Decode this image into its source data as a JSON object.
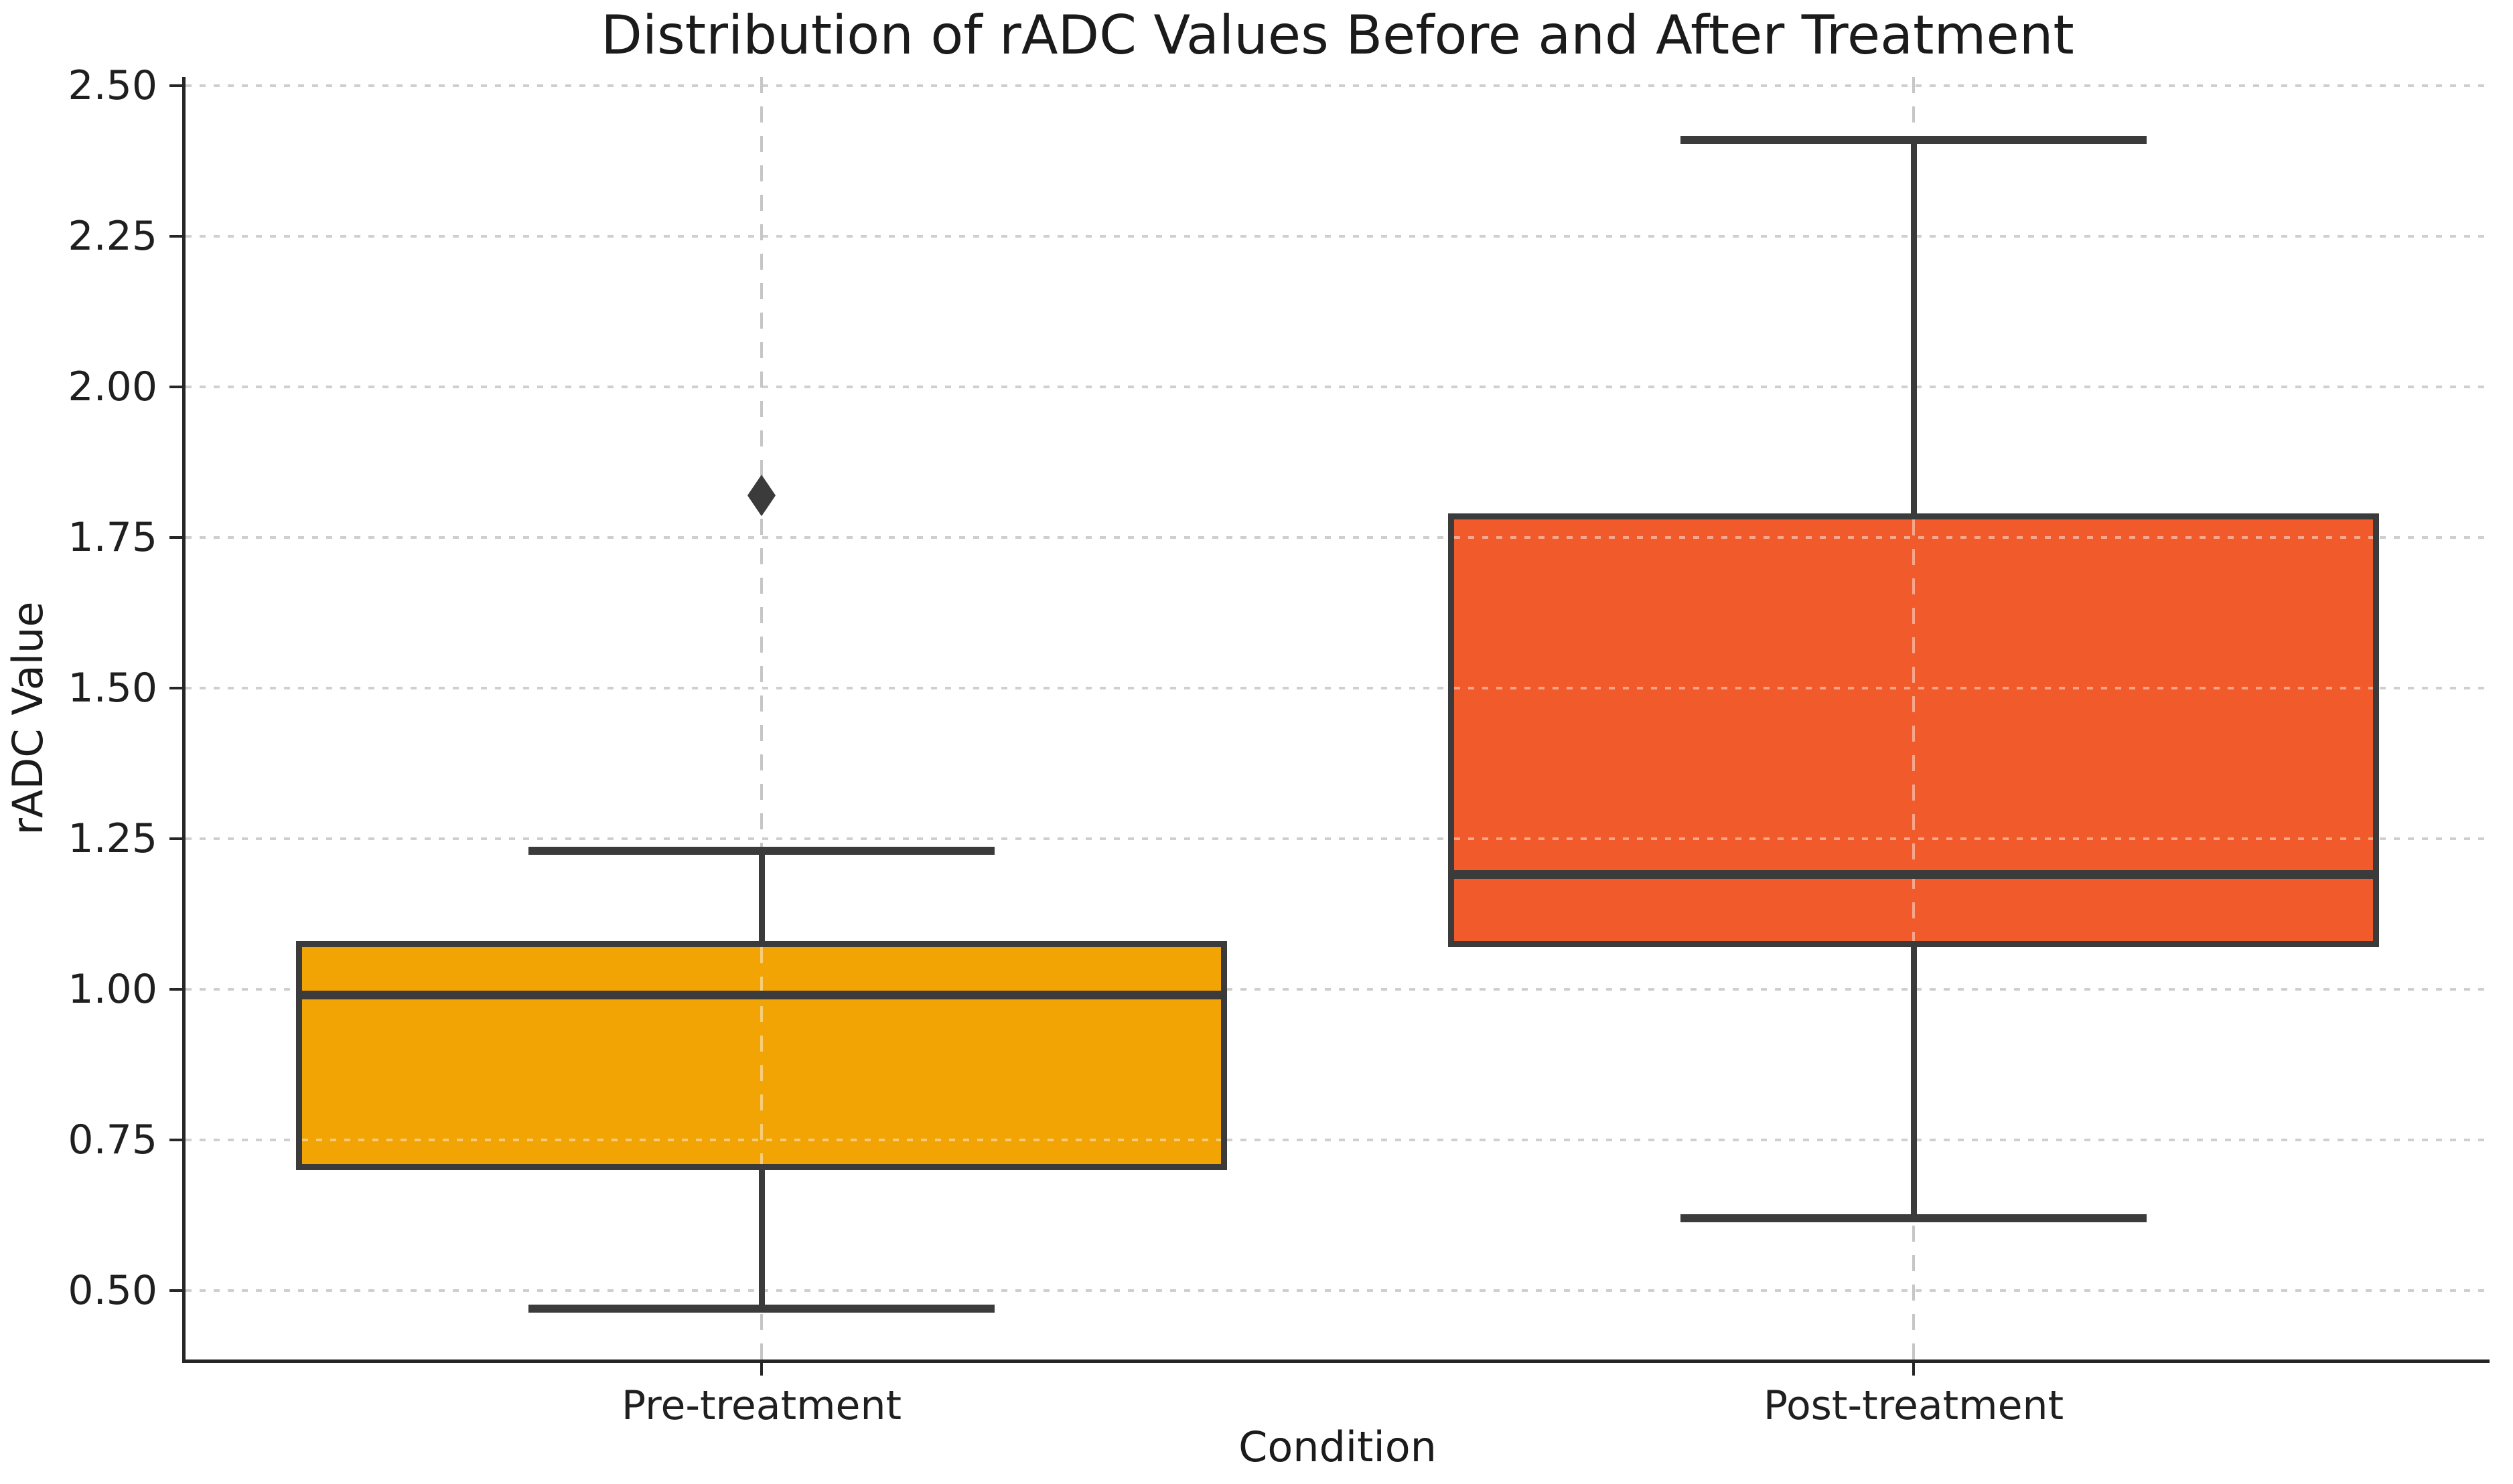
{
  "title": "Distribution of rADC Values Before and After Treatment",
  "chart_data": {
    "type": "box",
    "title": "Distribution of rADC Values Before and After Treatment",
    "xlabel": "Condition",
    "ylabel": "rADC Value",
    "categories": [
      "Pre-treatment",
      "Post-treatment"
    ],
    "ylim": [
      0.385,
      2.515
    ],
    "yticks": [
      0.5,
      0.75,
      1.0,
      1.25,
      1.5,
      1.75,
      2.0,
      2.25,
      2.5
    ],
    "ytick_labels": [
      "0.50",
      "0.75",
      "1.00",
      "1.25",
      "1.50",
      "1.75",
      "2.00",
      "2.25",
      "2.50"
    ],
    "grid": {
      "horizontal_style": "dotted",
      "vertical_style": "dashed",
      "grid_color": "#cfcfcf"
    },
    "legend": "none",
    "edge_color": "#3b3b3b",
    "boxes": [
      {
        "category": "Pre-treatment",
        "whisker_low": 0.47,
        "q1": 0.7,
        "median": 0.99,
        "q3": 1.08,
        "whisker_high": 1.23,
        "outliers": [
          1.82
        ],
        "fill_color": "#F2A405"
      },
      {
        "category": "Post-treatment",
        "whisker_low": 0.62,
        "q1": 1.07,
        "median": 1.19,
        "q3": 1.79,
        "whisker_high": 2.41,
        "outliers": [],
        "fill_color": "#F15B2C"
      }
    ]
  },
  "colors": {
    "background": "#ffffff",
    "text": "#1b1b1b",
    "spine": "#262626",
    "box_edge": "#3b3b3b",
    "pre_fill": "#F2A405",
    "post_fill": "#F15B2C",
    "grid": "#cfcfcf"
  }
}
